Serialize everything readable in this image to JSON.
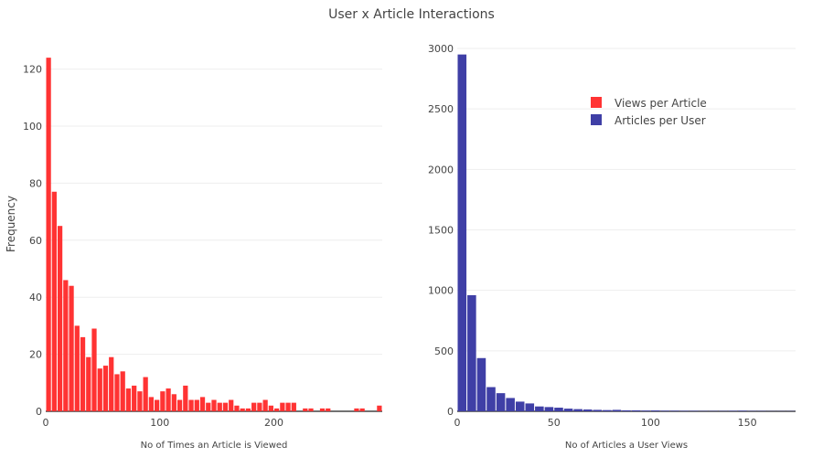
{
  "title": "User x Article Interactions",
  "chart_data": [
    {
      "type": "bar",
      "subtype": "histogram",
      "title": "",
      "xlabel": "No of Times an Article is Viewed",
      "ylabel": "Frequency",
      "xlim": [
        0,
        295
      ],
      "ylim": [
        0,
        125
      ],
      "xticks": [
        0,
        100,
        200
      ],
      "yticks": [
        0,
        20,
        40,
        60,
        80,
        100,
        120
      ],
      "bin_width": 5,
      "color": "#ff3333",
      "grid": true,
      "series": [
        {
          "name": "Views per Article",
          "bin_starts": [
            0,
            5,
            10,
            15,
            20,
            25,
            30,
            35,
            40,
            45,
            50,
            55,
            60,
            65,
            70,
            75,
            80,
            85,
            90,
            95,
            100,
            105,
            110,
            115,
            120,
            125,
            130,
            135,
            140,
            145,
            150,
            155,
            160,
            165,
            170,
            175,
            180,
            185,
            190,
            195,
            200,
            205,
            210,
            215,
            220,
            225,
            230,
            235,
            240,
            245,
            250,
            255,
            260,
            265,
            270,
            275,
            280,
            285,
            290
          ],
          "values": [
            124,
            77,
            65,
            46,
            44,
            30,
            26,
            19,
            29,
            15,
            16,
            19,
            13,
            14,
            8,
            9,
            7,
            12,
            5,
            4,
            7,
            8,
            6,
            4,
            9,
            4,
            4,
            5,
            3,
            4,
            3,
            3,
            4,
            2,
            1,
            1,
            3,
            3,
            4,
            2,
            1,
            3,
            3,
            3,
            0,
            1,
            1,
            0,
            1,
            1,
            0,
            0,
            0,
            0,
            1,
            1,
            0,
            0,
            2
          ]
        }
      ]
    },
    {
      "type": "bar",
      "subtype": "histogram",
      "title": "",
      "xlabel": "No of Articles a User Views",
      "ylabel": "",
      "xlim": [
        0,
        175
      ],
      "ylim": [
        0,
        3000
      ],
      "xticks": [
        0,
        50,
        100,
        150
      ],
      "yticks": [
        0,
        500,
        1000,
        1500,
        2000,
        2500,
        3000
      ],
      "bin_width": 5,
      "color": "#3f3fa6",
      "grid": true,
      "series": [
        {
          "name": "Articles per User",
          "bin_starts": [
            0,
            5,
            10,
            15,
            20,
            25,
            30,
            35,
            40,
            45,
            50,
            55,
            60,
            65,
            70,
            75,
            80,
            85,
            90,
            95,
            100,
            105,
            110,
            115,
            120,
            125,
            130,
            135,
            140,
            145,
            150,
            155,
            160,
            165,
            170
          ],
          "values": [
            2950,
            960,
            440,
            200,
            150,
            110,
            80,
            65,
            40,
            35,
            30,
            22,
            18,
            15,
            12,
            10,
            12,
            8,
            8,
            6,
            7,
            5,
            5,
            4,
            4,
            3,
            3,
            3,
            4,
            5,
            3,
            3,
            2,
            2,
            2
          ]
        }
      ]
    }
  ],
  "legend": {
    "placement": "top-right",
    "items": [
      {
        "label": "Views per Article",
        "color": "#ff3333"
      },
      {
        "label": "Articles per User",
        "color": "#3f3fa6"
      }
    ]
  }
}
